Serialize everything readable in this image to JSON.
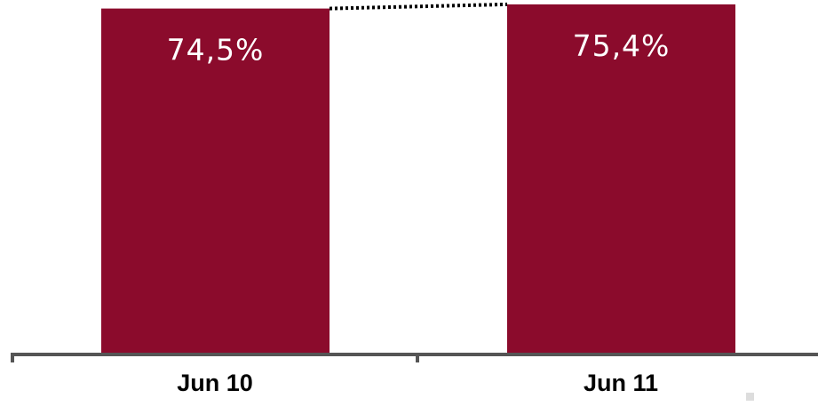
{
  "chart_data": {
    "type": "bar",
    "categories": [
      "Jun 10",
      "Jun 11"
    ],
    "values": [
      74.5,
      75.4
    ],
    "value_labels": [
      "74,5%",
      "75,4%"
    ],
    "title": "",
    "xlabel": "",
    "ylabel": "",
    "grid": false,
    "legend": "none",
    "bar_color": "#8b0b2c",
    "label_color": "#ffffff",
    "connector": "dotted",
    "connector_color": "#000000",
    "axis_color": "#555555"
  }
}
